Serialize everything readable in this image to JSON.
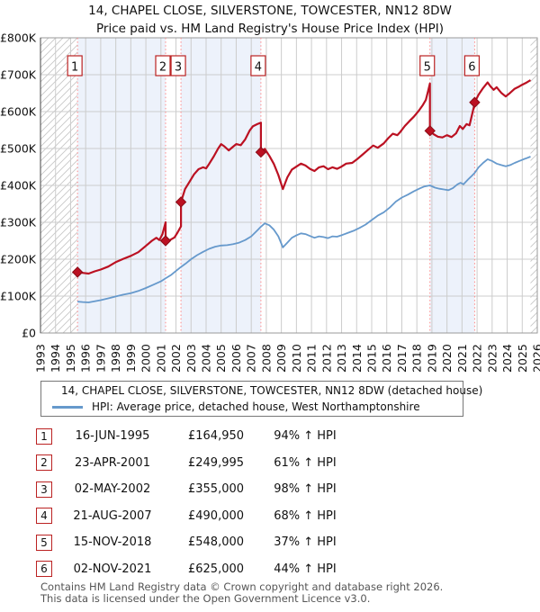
{
  "title": "14, CHAPEL CLOSE, SILVERSTONE, TOWCESTER, NN12 8DW",
  "subtitle": "Price paid vs. HM Land Registry's House Price Index (HPI)",
  "colors": {
    "property_line": "#bb1122",
    "hpi_line": "#6699cc",
    "sale_vline": "#ff8888",
    "band_fill": "#edf2fb",
    "grid": "#cccccc",
    "hatch": "#c8c8c8",
    "border": "#999999",
    "marker_box_border": "#bb2222",
    "text": "#111111",
    "footer_text": "#555555"
  },
  "sales": [
    {
      "num": "1",
      "year": 1995.46,
      "priceK": 164.95,
      "date": "16-JUN-1995",
      "price": "£164,950",
      "vs_hpi": "94% ↑ HPI"
    },
    {
      "num": "2",
      "year": 2001.31,
      "priceK": 249.995,
      "date": "23-APR-2001",
      "price": "£249,995",
      "vs_hpi": "61% ↑ HPI"
    },
    {
      "num": "3",
      "year": 2002.33,
      "priceK": 355,
      "date": "02-MAY-2002",
      "price": "£355,000",
      "vs_hpi": "98% ↑ HPI"
    },
    {
      "num": "4",
      "year": 2007.64,
      "priceK": 490,
      "date": "21-AUG-2007",
      "price": "£490,000",
      "vs_hpi": "68% ↑ HPI"
    },
    {
      "num": "5",
      "year": 2018.87,
      "priceK": 548,
      "date": "15-NOV-2018",
      "price": "£548,000",
      "vs_hpi": "37% ↑ HPI"
    },
    {
      "num": "6",
      "year": 2021.84,
      "priceK": 625,
      "date": "02-NOV-2021",
      "price": "£625,000",
      "vs_hpi": "44% ↑ HPI"
    }
  ],
  "chart_data": {
    "type": "line",
    "xlim": [
      1993,
      2026
    ],
    "ylim": [
      0,
      800
    ],
    "x_ticks": [
      1993,
      1994,
      1995,
      1996,
      1997,
      1998,
      1999,
      2000,
      2001,
      2002,
      2003,
      2004,
      2005,
      2006,
      2007,
      2008,
      2009,
      2010,
      2011,
      2012,
      2013,
      2014,
      2015,
      2016,
      2017,
      2018,
      2019,
      2020,
      2021,
      2022,
      2023,
      2024,
      2025,
      2026
    ],
    "y_ticks": [
      [
        "£800K",
        800
      ],
      [
        "£700K",
        700
      ],
      [
        "£600K",
        600
      ],
      [
        "£500K",
        500
      ],
      [
        "£400K",
        400
      ],
      [
        "£300K",
        300
      ],
      [
        "£200K",
        200
      ],
      [
        "£100K",
        100
      ],
      [
        "£0",
        0
      ]
    ],
    "shaded_bands": [
      [
        1995.46,
        2001.31
      ],
      [
        2002.33,
        2007.64
      ],
      [
        2018.87,
        2021.84
      ]
    ],
    "hatch_regions": [
      [
        1993,
        1995.46
      ],
      [
        2025.55,
        2026
      ]
    ],
    "grid": true,
    "legend_position": "below",
    "series": [
      {
        "name": "14, CHAPEL CLOSE, SILVERSTONE, TOWCESTER, NN12 8DW (detached house)",
        "color_key": "property_line",
        "width": 2.2,
        "points": [
          [
            1995.46,
            165
          ],
          [
            1995.8,
            163
          ],
          [
            1996.2,
            161
          ],
          [
            1996.6,
            167
          ],
          [
            1997.0,
            172
          ],
          [
            1997.5,
            180
          ],
          [
            1998.0,
            192
          ],
          [
            1998.5,
            201
          ],
          [
            1999.0,
            209
          ],
          [
            1999.5,
            219
          ],
          [
            2000.0,
            236
          ],
          [
            2000.4,
            250
          ],
          [
            2000.7,
            258
          ],
          [
            2000.9,
            252
          ],
          [
            2001.1,
            268
          ],
          [
            2001.31,
            300
          ],
          [
            2001.31,
            250
          ],
          [
            2001.6,
            252
          ],
          [
            2001.9,
            259
          ],
          [
            2002.1,
            272
          ],
          [
            2002.33,
            289
          ],
          [
            2002.33,
            355
          ],
          [
            2002.6,
            390
          ],
          [
            2002.9,
            410
          ],
          [
            2003.2,
            430
          ],
          [
            2003.5,
            444
          ],
          [
            2003.8,
            449
          ],
          [
            2004.0,
            446
          ],
          [
            2004.2,
            458
          ],
          [
            2004.5,
            478
          ],
          [
            2004.8,
            500
          ],
          [
            2005.0,
            512
          ],
          [
            2005.2,
            506
          ],
          [
            2005.5,
            495
          ],
          [
            2005.8,
            505
          ],
          [
            2006.0,
            512
          ],
          [
            2006.3,
            509
          ],
          [
            2006.6,
            525
          ],
          [
            2006.9,
            549
          ],
          [
            2007.1,
            560
          ],
          [
            2007.4,
            566
          ],
          [
            2007.64,
            570
          ],
          [
            2007.64,
            490
          ],
          [
            2007.9,
            499
          ],
          [
            2008.2,
            480
          ],
          [
            2008.5,
            458
          ],
          [
            2008.8,
            428
          ],
          [
            2009.1,
            390
          ],
          [
            2009.4,
            422
          ],
          [
            2009.7,
            443
          ],
          [
            2010.0,
            451
          ],
          [
            2010.3,
            459
          ],
          [
            2010.6,
            454
          ],
          [
            2010.9,
            445
          ],
          [
            2011.2,
            439
          ],
          [
            2011.5,
            449
          ],
          [
            2011.8,
            452
          ],
          [
            2012.1,
            444
          ],
          [
            2012.4,
            449
          ],
          [
            2012.7,
            445
          ],
          [
            2013.0,
            451
          ],
          [
            2013.3,
            459
          ],
          [
            2013.7,
            461
          ],
          [
            2014.0,
            470
          ],
          [
            2014.4,
            484
          ],
          [
            2014.8,
            498
          ],
          [
            2015.1,
            508
          ],
          [
            2015.4,
            502
          ],
          [
            2015.8,
            514
          ],
          [
            2016.1,
            528
          ],
          [
            2016.4,
            540
          ],
          [
            2016.7,
            536
          ],
          [
            2016.9,
            545
          ],
          [
            2017.2,
            561
          ],
          [
            2017.5,
            574
          ],
          [
            2017.8,
            586
          ],
          [
            2018.1,
            601
          ],
          [
            2018.4,
            618
          ],
          [
            2018.6,
            632
          ],
          [
            2018.75,
            656
          ],
          [
            2018.87,
            676
          ],
          [
            2018.87,
            548
          ],
          [
            2019.1,
            539
          ],
          [
            2019.4,
            532
          ],
          [
            2019.7,
            530
          ],
          [
            2020.0,
            536
          ],
          [
            2020.3,
            531
          ],
          [
            2020.6,
            541
          ],
          [
            2020.85,
            561
          ],
          [
            2021.05,
            553
          ],
          [
            2021.3,
            566
          ],
          [
            2021.5,
            563
          ],
          [
            2021.84,
            622
          ],
          [
            2021.84,
            625
          ],
          [
            2022.1,
            646
          ],
          [
            2022.4,
            664
          ],
          [
            2022.7,
            679
          ],
          [
            2022.9,
            668
          ],
          [
            2023.1,
            659
          ],
          [
            2023.3,
            666
          ],
          [
            2023.6,
            651
          ],
          [
            2023.9,
            641
          ],
          [
            2024.2,
            651
          ],
          [
            2024.5,
            662
          ],
          [
            2024.8,
            668
          ],
          [
            2025.0,
            673
          ],
          [
            2025.3,
            679
          ],
          [
            2025.55,
            685
          ]
        ]
      },
      {
        "name": "HPI: Average price, detached house, West Northamptonshire",
        "color_key": "hpi_line",
        "width": 1.8,
        "points": [
          [
            1995.46,
            85
          ],
          [
            1995.8,
            84
          ],
          [
            1996.2,
            83
          ],
          [
            1996.6,
            86
          ],
          [
            1997.0,
            89
          ],
          [
            1997.5,
            94
          ],
          [
            1998.0,
            99
          ],
          [
            1998.5,
            104
          ],
          [
            1999.0,
            108
          ],
          [
            1999.5,
            114
          ],
          [
            2000.0,
            122
          ],
          [
            2000.5,
            131
          ],
          [
            2001.0,
            140
          ],
          [
            2001.31,
            148
          ],
          [
            2001.7,
            158
          ],
          [
            2002.0,
            168
          ],
          [
            2002.33,
            179
          ],
          [
            2002.7,
            190
          ],
          [
            2003.0,
            200
          ],
          [
            2003.4,
            211
          ],
          [
            2003.8,
            220
          ],
          [
            2004.2,
            228
          ],
          [
            2004.6,
            234
          ],
          [
            2005.0,
            237
          ],
          [
            2005.4,
            238
          ],
          [
            2005.8,
            241
          ],
          [
            2006.2,
            245
          ],
          [
            2006.6,
            252
          ],
          [
            2007.0,
            262
          ],
          [
            2007.4,
            278
          ],
          [
            2007.64,
            288
          ],
          [
            2007.9,
            297
          ],
          [
            2008.2,
            292
          ],
          [
            2008.5,
            280
          ],
          [
            2008.8,
            262
          ],
          [
            2009.1,
            232
          ],
          [
            2009.4,
            245
          ],
          [
            2009.7,
            258
          ],
          [
            2010.0,
            265
          ],
          [
            2010.3,
            270
          ],
          [
            2010.6,
            268
          ],
          [
            2010.9,
            263
          ],
          [
            2011.2,
            258
          ],
          [
            2011.5,
            262
          ],
          [
            2011.8,
            260
          ],
          [
            2012.1,
            257
          ],
          [
            2012.4,
            262
          ],
          [
            2012.7,
            261
          ],
          [
            2013.0,
            265
          ],
          [
            2013.4,
            271
          ],
          [
            2013.8,
            277
          ],
          [
            2014.2,
            285
          ],
          [
            2014.6,
            294
          ],
          [
            2015.0,
            306
          ],
          [
            2015.4,
            318
          ],
          [
            2015.8,
            327
          ],
          [
            2016.2,
            340
          ],
          [
            2016.6,
            356
          ],
          [
            2017.0,
            367
          ],
          [
            2017.4,
            375
          ],
          [
            2017.8,
            384
          ],
          [
            2018.2,
            392
          ],
          [
            2018.5,
            397
          ],
          [
            2018.87,
            400
          ],
          [
            2019.2,
            394
          ],
          [
            2019.5,
            391
          ],
          [
            2019.8,
            389
          ],
          [
            2020.1,
            387
          ],
          [
            2020.4,
            393
          ],
          [
            2020.7,
            403
          ],
          [
            2020.9,
            407
          ],
          [
            2021.1,
            403
          ],
          [
            2021.4,
            416
          ],
          [
            2021.6,
            424
          ],
          [
            2021.84,
            434
          ],
          [
            2022.1,
            449
          ],
          [
            2022.4,
            461
          ],
          [
            2022.7,
            471
          ],
          [
            2023.0,
            466
          ],
          [
            2023.3,
            459
          ],
          [
            2023.6,
            455
          ],
          [
            2023.9,
            452
          ],
          [
            2024.2,
            455
          ],
          [
            2024.5,
            461
          ],
          [
            2024.8,
            466
          ],
          [
            2025.1,
            471
          ],
          [
            2025.3,
            474
          ],
          [
            2025.55,
            478
          ]
        ]
      }
    ]
  },
  "legend": {
    "items": [
      {
        "label": "14, CHAPEL CLOSE, SILVERSTONE, TOWCESTER, NN12 8DW (detached house)",
        "color_key": "property_line"
      },
      {
        "label": "HPI: Average price, detached house, West Northamptonshire",
        "color_key": "hpi_line"
      }
    ]
  },
  "footer": {
    "line1": "Contains HM Land Registry data © Crown copyright and database right 2026.",
    "line2": "This data is licensed under the Open Government Licence v3.0."
  }
}
